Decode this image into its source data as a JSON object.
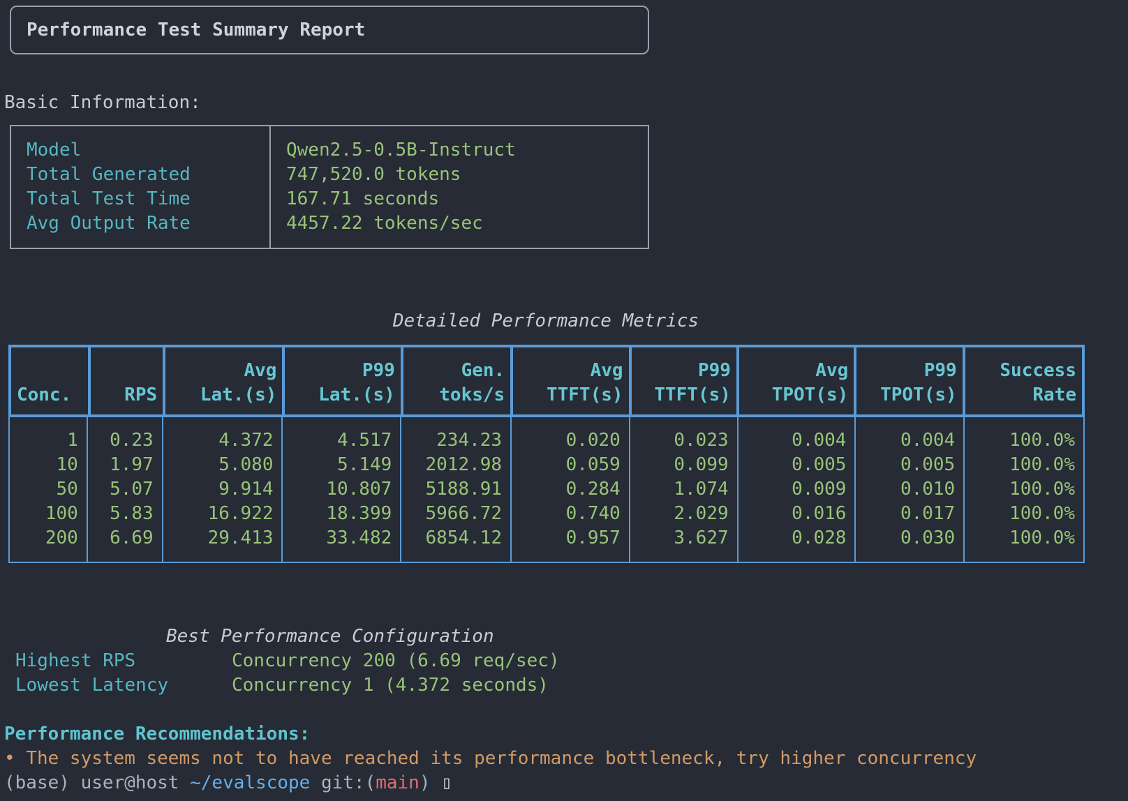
{
  "colors": {
    "background": "#262b35",
    "table_border_blue": "#5a9bd7",
    "value_green": "#98c379",
    "label_cyan": "#56b6c2",
    "header_cyan": "#66c7d2",
    "recommendation_orange": "#d19a66",
    "text_gray": "#abb2bf",
    "panel_border_gray": "#99a1ab"
  },
  "title": "Performance Test Summary Report",
  "basic_info": {
    "heading": "Basic Information:",
    "rows": [
      {
        "label": "Model",
        "value": "Qwen2.5-0.5B-Instruct"
      },
      {
        "label": "Total Generated",
        "value": "747,520.0 tokens"
      },
      {
        "label": "Total Test Time",
        "value": "167.71 seconds"
      },
      {
        "label": "Avg Output Rate",
        "value": "4457.22 tokens/sec"
      }
    ]
  },
  "metrics": {
    "title": "Detailed Performance Metrics",
    "columns": [
      {
        "l1": "",
        "l2": "Conc."
      },
      {
        "l1": "",
        "l2": "RPS"
      },
      {
        "l1": "Avg",
        "l2": "Lat.(s)"
      },
      {
        "l1": "P99",
        "l2": "Lat.(s)"
      },
      {
        "l1": "Gen.",
        "l2": "toks/s"
      },
      {
        "l1": "Avg",
        "l2": "TTFT(s)"
      },
      {
        "l1": "P99",
        "l2": "TTFT(s)"
      },
      {
        "l1": "Avg",
        "l2": "TPOT(s)"
      },
      {
        "l1": "P99",
        "l2": "TPOT(s)"
      },
      {
        "l1": "Success",
        "l2": "Rate"
      }
    ],
    "rows": [
      [
        "1",
        "0.23",
        "4.372",
        "4.517",
        "234.23",
        "0.020",
        "0.023",
        "0.004",
        "0.004",
        "100.0%"
      ],
      [
        "10",
        "1.97",
        "5.080",
        "5.149",
        "2012.98",
        "0.059",
        "0.099",
        "0.005",
        "0.005",
        "100.0%"
      ],
      [
        "50",
        "5.07",
        "9.914",
        "10.807",
        "5188.91",
        "0.284",
        "1.074",
        "0.009",
        "0.010",
        "100.0%"
      ],
      [
        "100",
        "5.83",
        "16.922",
        "18.399",
        "5966.72",
        "0.740",
        "2.029",
        "0.016",
        "0.017",
        "100.0%"
      ],
      [
        "200",
        "6.69",
        "29.413",
        "33.482",
        "6854.12",
        "0.957",
        "3.627",
        "0.028",
        "0.030",
        "100.0%"
      ]
    ]
  },
  "best_config": {
    "title": "Best Performance Configuration",
    "rows": [
      {
        "label": "Highest RPS",
        "value": "Concurrency 200 (6.69 req/sec)"
      },
      {
        "label": "Lowest Latency",
        "value": "Concurrency 1 (4.372 seconds)"
      }
    ]
  },
  "recommendations": {
    "heading": "Performance Recommendations:",
    "bullet": "• ",
    "items": [
      {
        "text": "The system seems not to have reached its performance bottleneck, try higher concurrency"
      }
    ]
  },
  "partial_prompt": {
    "fragments": [
      {
        "text": "(base) user@host ",
        "color": "#abb2bf"
      },
      {
        "text": "~/evalscope",
        "color": "#61afef"
      },
      {
        "text": " git:(",
        "color": "#abb2bf"
      },
      {
        "text": "main",
        "color": "#e06c75"
      },
      {
        "text": ") ",
        "color": "#abb2bf"
      },
      {
        "text": "▯",
        "color": "#c8ccd4"
      }
    ]
  }
}
